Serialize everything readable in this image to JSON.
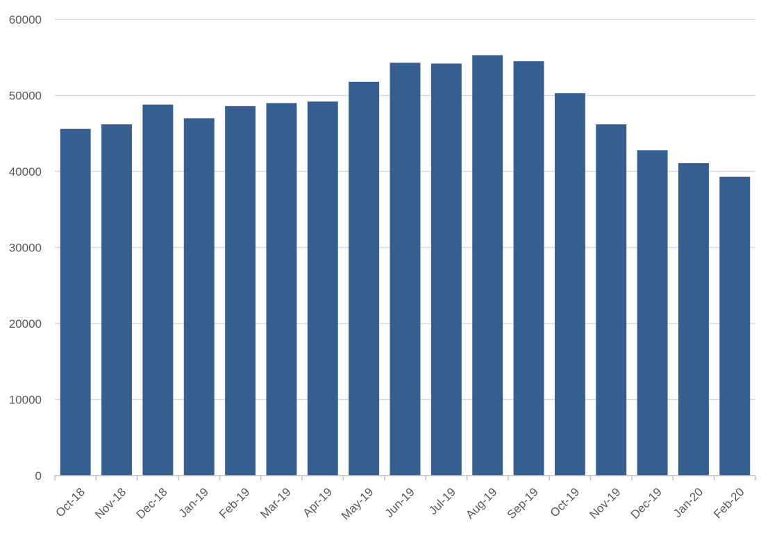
{
  "chart_data": {
    "type": "bar",
    "title": "",
    "xlabel": "",
    "ylabel": "",
    "categories": [
      "Oct-18",
      "Nov-18",
      "Dec-18",
      "Jan-19",
      "Feb-19",
      "Mar-19",
      "Apr-19",
      "May-19",
      "Jun-19",
      "Jul-19",
      "Aug-19",
      "Sep-19",
      "Oct-19",
      "Nov-19",
      "Dec-19",
      "Jan-20",
      "Feb-20"
    ],
    "values": [
      45600,
      46200,
      48800,
      47000,
      48600,
      49000,
      49200,
      51800,
      54300,
      54200,
      55300,
      54500,
      50300,
      46200,
      42800,
      41100,
      39300
    ],
    "ylim": [
      0,
      60000
    ],
    "yticks": [
      "0",
      "10000",
      "20000",
      "30000",
      "40000",
      "50000",
      "60000"
    ],
    "bar_color": "#365f91",
    "grid": true,
    "legend": "none"
  }
}
